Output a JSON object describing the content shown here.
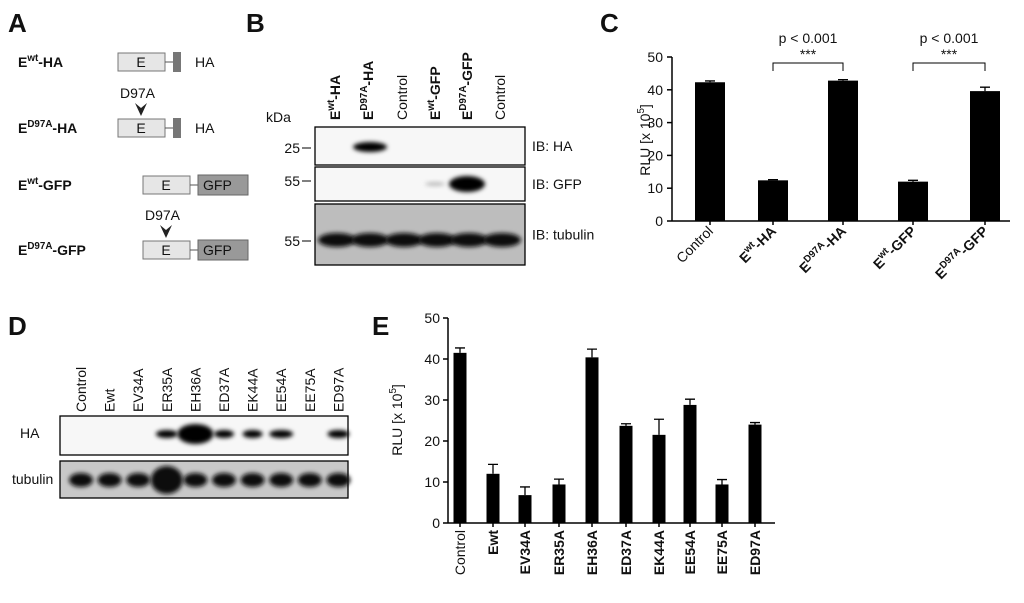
{
  "panels": [
    "A",
    "B",
    "C",
    "D",
    "E"
  ],
  "constructs": [
    {
      "label": [
        "E",
        "wt",
        "-HA"
      ],
      "domain": "E",
      "tag": "HA"
    },
    {
      "mutation": "D97A",
      "label": [
        "E",
        "D97A",
        "-HA"
      ],
      "domain": "E",
      "tag": "HA"
    },
    {
      "label": [
        "E",
        "wt",
        "-GFP"
      ],
      "domain": "E",
      "tag": "GFP"
    },
    {
      "mutation": "D97A",
      "label": [
        "E",
        "D97A",
        "-GFP"
      ],
      "domain": "E",
      "tag": "GFP"
    }
  ],
  "blot_b": {
    "lanes": [
      [
        "E",
        "wt",
        "-HA"
      ],
      [
        "E",
        "D97A",
        "-HA"
      ],
      [
        "Control"
      ],
      [
        "E",
        "wt",
        "-GFP"
      ],
      [
        "E",
        "D97A",
        "-GFP"
      ],
      [
        "Control"
      ]
    ],
    "unit": "kDa",
    "markers": [
      "25",
      "55",
      "55"
    ],
    "probes": [
      "IB: HA",
      "IB: GFP",
      "IB: tubulin"
    ]
  },
  "blot_d": {
    "lanes": [
      "Control",
      "Ewt",
      "EV34A",
      "ER35A",
      "EH36A",
      "ED37A",
      "EK44A",
      "EE54A",
      "EE75A",
      "ED97A"
    ],
    "rows": [
      "HA",
      "tubulin"
    ]
  },
  "chart_data": [
    {
      "type": "bar",
      "ylabel": [
        "RLU [x 10",
        "5",
        "]"
      ],
      "categories": [
        [
          "Control"
        ],
        [
          "E",
          "wt",
          "-HA"
        ],
        [
          "E",
          "D97A",
          "-HA"
        ],
        [
          "E",
          "wt",
          "-GFP"
        ],
        [
          "E",
          "D97A",
          "-GFP"
        ]
      ],
      "values": [
        42.3,
        12.4,
        42.8,
        12,
        39.6
      ],
      "errors": [
        0.4,
        0.2,
        0.3,
        0.4,
        1.2
      ],
      "color": "#000000",
      "ylim": [
        0,
        50
      ],
      "yticks": [
        0,
        10,
        20,
        30,
        40,
        50
      ],
      "annotations": [
        {
          "text": "p < 0.001",
          "stars": "***"
        },
        {
          "text": "p < 0.001",
          "stars": "***"
        }
      ]
    },
    {
      "type": "bar",
      "ylabel": [
        "RLU [x 10",
        "5",
        "]"
      ],
      "categories": [
        [
          "Control"
        ],
        [
          "Ewt"
        ],
        [
          "EV34A"
        ],
        [
          "ER35A"
        ],
        [
          "EH36A"
        ],
        [
          "ED37A"
        ],
        [
          "EK44A"
        ],
        [
          "EE54A"
        ],
        [
          "EE75A"
        ],
        [
          "ED97A"
        ]
      ],
      "values": [
        41.5,
        12,
        6.8,
        9.4,
        40.4,
        23.7,
        21.5,
        28.8,
        9.4,
        24
      ],
      "errors": [
        1.2,
        2.3,
        2,
        1.3,
        2,
        0.5,
        3.8,
        1.4,
        1.2,
        0.5
      ],
      "color": "#000000",
      "ylim": [
        0,
        50
      ],
      "yticks": [
        0,
        10,
        20,
        30,
        40,
        50
      ]
    }
  ]
}
